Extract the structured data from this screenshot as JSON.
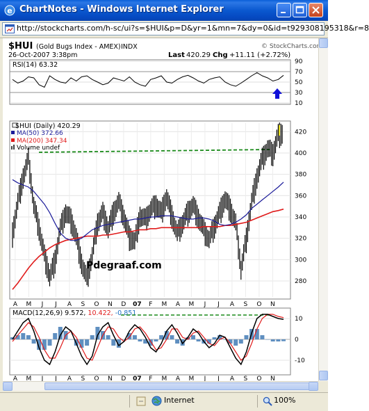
{
  "window": {
    "title": "ChartNotes - Windows Internet Explorer",
    "address": "http://stockcharts.com/h-sc/ui?s=$HUI&p=D&yr=1&mn=7&dy=0&id=t929308195318&r=8",
    "status_zone": "Internet",
    "zoom": "100%"
  },
  "chart": {
    "symbol": "$HUI",
    "name": "(Gold Bugs Index - AMEX)",
    "exchange": "INDX",
    "date": "26-Oct-2007 3:38pm",
    "last_label": "Last",
    "last_value": "420.29",
    "chg_label": "Chg",
    "chg_value": "+11.11 (+2.72%)",
    "copyright": "© StockCharts.com",
    "watermark": "Pdegraaf.com",
    "rsi_label": "RSI(14) 63.32",
    "price_label": "$HUI (Daily) 420.29",
    "ma50_label": "MA(50) 372.66",
    "ma200_label": "MA(200) 347.34",
    "volume_label": "Volume undef",
    "macd_prefix": "MACD(12,26,9) 9.572,",
    "macd_signal": "10.422,",
    "macd_hist": "-0.851",
    "colors": {
      "ma50": "#1b1b9a",
      "ma200": "#e01b1b",
      "dashed": "#1a8a1a",
      "macd_signal": "#e01b1b",
      "macd_hist": "#5f8fc0",
      "arrow": "#1010d8"
    }
  },
  "chart_data": [
    {
      "type": "line",
      "panel": "RSI",
      "title": "RSI(14) 63.32",
      "y_ticks": [
        90,
        70,
        50,
        30,
        10
      ],
      "ylim": [
        10,
        90
      ],
      "x_ticks": [
        "A",
        "M",
        "J",
        "J",
        "A",
        "S",
        "O",
        "N",
        "D",
        "07",
        "F",
        "M",
        "A",
        "M",
        "J",
        "J",
        "A",
        "S",
        "O",
        "N"
      ],
      "series": [
        {
          "name": "RSI(14)",
          "values": [
            55,
            48,
            52,
            60,
            58,
            45,
            40,
            62,
            55,
            50,
            48,
            58,
            52,
            60,
            62,
            55,
            50,
            45,
            48,
            58,
            55,
            52,
            60,
            50,
            45,
            42,
            55,
            58,
            62,
            50,
            48,
            55,
            60,
            63,
            58,
            52,
            48,
            55,
            58,
            60,
            50,
            45,
            42,
            48,
            55,
            62,
            68,
            62,
            58,
            52,
            55,
            63
          ]
        }
      ]
    },
    {
      "type": "line",
      "panel": "Price",
      "title": "$HUI (Daily) 420.29",
      "y_ticks": [
        420,
        400,
        380,
        360,
        340,
        320,
        300,
        280
      ],
      "ylim": [
        265,
        428
      ],
      "x_ticks": [
        "A",
        "M",
        "J",
        "J",
        "A",
        "S",
        "O",
        "N",
        "D",
        "07",
        "F",
        "M",
        "A",
        "M",
        "J",
        "J",
        "A",
        "S",
        "O",
        "N"
      ],
      "series": [
        {
          "name": "$HUI",
          "values": [
            325,
            355,
            378,
            395,
            352,
            330,
            305,
            285,
            300,
            330,
            345,
            338,
            322,
            298,
            282,
            305,
            335,
            345,
            330,
            345,
            355,
            340,
            322,
            318,
            342,
            338,
            348,
            352,
            345,
            360,
            342,
            325,
            335,
            345,
            352,
            340,
            328,
            320,
            332,
            345,
            358,
            348,
            335,
            292,
            320,
            355,
            378,
            395,
            405,
            400,
            418,
            420
          ]
        },
        {
          "name": "MA(50)",
          "values": [
            375,
            372,
            370,
            368,
            364,
            358,
            352,
            344,
            334,
            325,
            320,
            318,
            318,
            320,
            324,
            328,
            330,
            332,
            333,
            334,
            335,
            336,
            337,
            338,
            338,
            339,
            340,
            340,
            341,
            341,
            341,
            340,
            339,
            338,
            338,
            339,
            339,
            338,
            336,
            333,
            332,
            333,
            335,
            338,
            342,
            348,
            352,
            356,
            360,
            364,
            368,
            372.66
          ]
        },
        {
          "name": "MA(200)",
          "values": [
            272,
            278,
            285,
            292,
            298,
            303,
            307,
            311,
            314,
            316,
            318,
            319,
            320,
            321,
            322,
            322,
            322,
            323,
            323,
            324,
            325,
            326,
            326,
            327,
            328,
            328,
            329,
            329,
            330,
            330,
            330,
            330,
            330,
            330,
            330,
            330,
            331,
            331,
            331,
            331,
            332,
            332,
            333,
            334,
            335,
            337,
            339,
            341,
            343,
            345,
            346,
            347.34
          ]
        }
      ]
    },
    {
      "type": "line",
      "panel": "MACD",
      "title": "MACD(12,26,9) 9.572, 10.422, -0.851",
      "y_ticks": [
        10,
        0,
        -10
      ],
      "ylim": [
        -16,
        14
      ],
      "x_ticks": [
        "A",
        "M",
        "J",
        "J",
        "A",
        "S",
        "O",
        "N",
        "D",
        "07",
        "F",
        "M",
        "A",
        "M",
        "J",
        "J",
        "A",
        "S",
        "O",
        "N"
      ],
      "series": [
        {
          "name": "MACD",
          "values": [
            0,
            4,
            8,
            10,
            4,
            -4,
            -10,
            -12,
            -6,
            2,
            6,
            4,
            -2,
            -8,
            -12,
            -8,
            2,
            6,
            8,
            2,
            -3,
            -1,
            4,
            7,
            5,
            1,
            -4,
            -6,
            -2,
            4,
            7,
            3,
            -2,
            1,
            5,
            3,
            -1,
            -4,
            -2,
            2,
            1,
            -4,
            -9,
            -12,
            -6,
            3,
            10,
            12,
            12,
            11,
            10,
            9.572
          ]
        },
        {
          "name": "Signal",
          "values": [
            -1,
            2,
            5,
            8,
            6,
            1,
            -5,
            -9,
            -9,
            -4,
            2,
            4,
            1,
            -4,
            -9,
            -10,
            -4,
            2,
            6,
            5,
            1,
            -1,
            1,
            5,
            6,
            3,
            -1,
            -5,
            -4,
            0,
            5,
            5,
            1,
            0,
            3,
            4,
            1,
            -2,
            -3,
            0,
            1,
            -2,
            -6,
            -10,
            -8,
            -2,
            5,
            10,
            12,
            12,
            11,
            10.422
          ]
        },
        {
          "name": "Histogram",
          "values": [
            1,
            2,
            3,
            2,
            -2,
            -5,
            -5,
            -3,
            3,
            6,
            4,
            0,
            -3,
            -4,
            -3,
            2,
            6,
            4,
            2,
            -3,
            -4,
            0,
            3,
            2,
            -1,
            -2,
            -3,
            -1,
            2,
            4,
            2,
            -2,
            -3,
            1,
            2,
            -1,
            -2,
            -2,
            1,
            2,
            0,
            -2,
            -3,
            -2,
            2,
            5,
            5,
            2,
            0,
            -1,
            -1,
            -0.851
          ]
        }
      ]
    }
  ]
}
